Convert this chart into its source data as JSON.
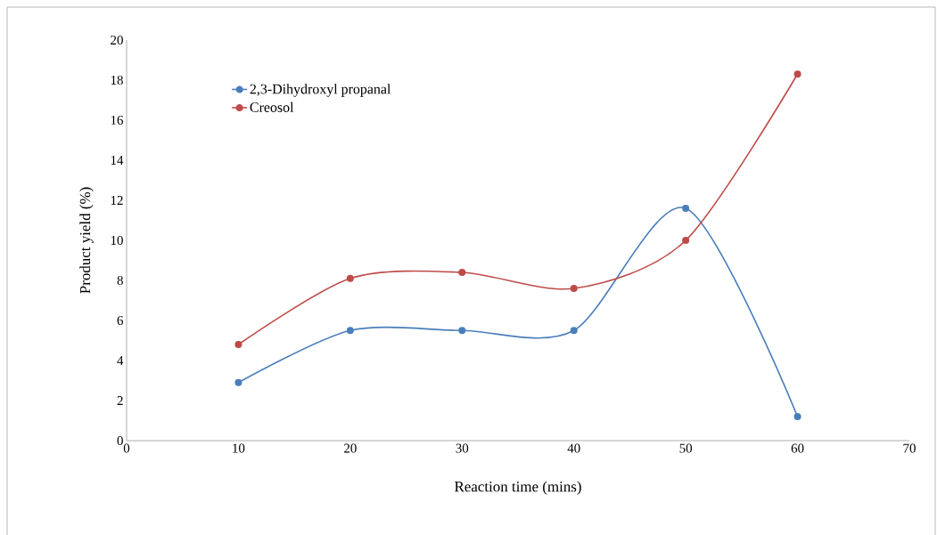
{
  "chart_data": {
    "type": "line",
    "xlabel": "Reaction time (mins)",
    "ylabel": "Product yield (%)",
    "x": [
      10,
      20,
      30,
      40,
      50,
      60
    ],
    "series": [
      {
        "name": "2,3-Dihydroxyl propanal",
        "color": "#4a7ebb",
        "values": [
          2.9,
          5.5,
          5.5,
          5.5,
          11.6,
          1.2
        ]
      },
      {
        "name": "Creosol",
        "color": "#be4b48",
        "values": [
          4.8,
          8.1,
          8.4,
          7.6,
          10.0,
          18.3
        ]
      }
    ],
    "xlim": [
      0,
      70
    ],
    "xticks": [
      0,
      10,
      20,
      30,
      40,
      50,
      60,
      70
    ],
    "ylim": [
      0,
      20
    ],
    "yticks": [
      0,
      2,
      4,
      6,
      8,
      10,
      12,
      14,
      16,
      18,
      20
    ],
    "grid": false,
    "legend": "top left",
    "marker": "circle",
    "line_style": "solid"
  }
}
